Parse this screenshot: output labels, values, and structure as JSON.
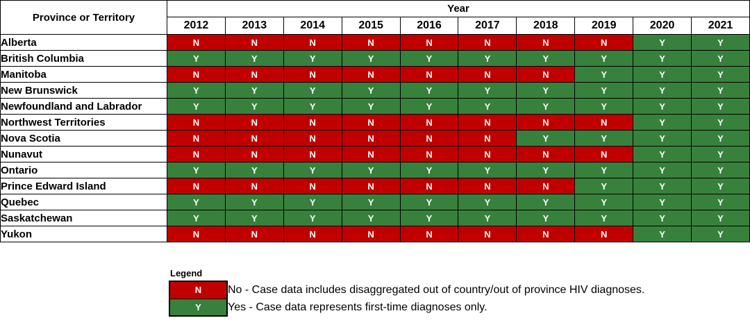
{
  "colors": {
    "no_red": "#C00000",
    "yes_green": "#38813C",
    "border_black": "#000000",
    "cell_text_white": "#FFFFFF"
  },
  "chart_data": {
    "type": "table",
    "row_header": "Province or Territory",
    "column_group_label": "Year",
    "columns": [
      "2012",
      "2013",
      "2014",
      "2015",
      "2016",
      "2017",
      "2018",
      "2019",
      "2020",
      "2021"
    ],
    "rows": [
      {
        "label": "Alberta",
        "values": [
          "N",
          "N",
          "N",
          "N",
          "N",
          "N",
          "N",
          "N",
          "Y",
          "Y"
        ]
      },
      {
        "label": "British Columbia",
        "values": [
          "Y",
          "Y",
          "Y",
          "Y",
          "Y",
          "Y",
          "Y",
          "Y",
          "Y",
          "Y"
        ]
      },
      {
        "label": "Manitoba",
        "values": [
          "N",
          "N",
          "N",
          "N",
          "N",
          "N",
          "N",
          "Y",
          "Y",
          "Y"
        ]
      },
      {
        "label": "New Brunswick",
        "values": [
          "Y",
          "Y",
          "Y",
          "Y",
          "Y",
          "Y",
          "Y",
          "Y",
          "Y",
          "Y"
        ]
      },
      {
        "label": "Newfoundland and Labrador",
        "values": [
          "Y",
          "Y",
          "Y",
          "Y",
          "Y",
          "Y",
          "Y",
          "Y",
          "Y",
          "Y"
        ]
      },
      {
        "label": "Northwest Territories",
        "values": [
          "N",
          "N",
          "N",
          "N",
          "N",
          "N",
          "N",
          "N",
          "Y",
          "Y"
        ]
      },
      {
        "label": "Nova Scotia",
        "values": [
          "N",
          "N",
          "N",
          "N",
          "N",
          "N",
          "Y",
          "Y",
          "Y",
          "Y"
        ]
      },
      {
        "label": "Nunavut",
        "values": [
          "N",
          "N",
          "N",
          "N",
          "N",
          "N",
          "N",
          "N",
          "Y",
          "Y"
        ]
      },
      {
        "label": "Ontario",
        "values": [
          "Y",
          "Y",
          "Y",
          "Y",
          "Y",
          "Y",
          "Y",
          "Y",
          "Y",
          "Y"
        ]
      },
      {
        "label": "Prince Edward Island",
        "values": [
          "N",
          "N",
          "N",
          "N",
          "N",
          "N",
          "N",
          "Y",
          "Y",
          "Y"
        ]
      },
      {
        "label": "Quebec",
        "values": [
          "Y",
          "Y",
          "Y",
          "Y",
          "Y",
          "Y",
          "Y",
          "Y",
          "Y",
          "Y"
        ]
      },
      {
        "label": "Saskatchewan",
        "values": [
          "Y",
          "Y",
          "Y",
          "Y",
          "Y",
          "Y",
          "Y",
          "Y",
          "Y",
          "Y"
        ]
      },
      {
        "label": "Yukon",
        "values": [
          "N",
          "N",
          "N",
          "N",
          "N",
          "N",
          "N",
          "N",
          "Y",
          "Y"
        ]
      }
    ],
    "value_colors": {
      "N": "#C00000",
      "Y": "#38813C"
    }
  },
  "legend": {
    "title": "Legend",
    "items": [
      {
        "symbol": "N",
        "color": "#C00000",
        "description": "No - Case data includes disaggregated out of country/out of province HIV diagnoses."
      },
      {
        "symbol": "Y",
        "color": "#38813C",
        "description": "Yes - Case data represents first-time diagnoses only."
      }
    ]
  }
}
